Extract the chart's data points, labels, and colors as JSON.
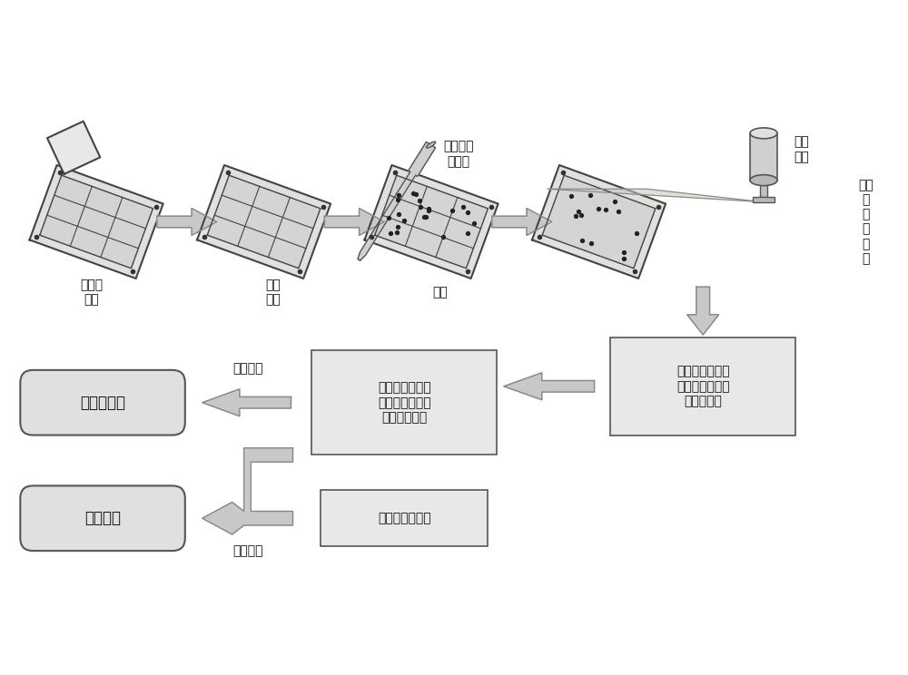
{
  "bg_color": "#ffffff",
  "box_color": "#e8e8e8",
  "box_edge": "#555555",
  "arrow_color": "#aaaaaa",
  "arrow_edge": "#888888",
  "text_color": "#111111",
  "font_size": 11,
  "labels": {
    "cover_glass": "盖上盖\n玻片",
    "add_algae": "加入\n藻液",
    "absorb_excess": "吸走多余\n的藻液",
    "stand": "静置",
    "raman_system": "拉曼\n系统",
    "laser_scan": "激光\n线\n扫\n描\n成\n像",
    "preprocess": "藻细胞拉曼成像\n预处理（滤波，\n基线校正）",
    "display": "藻细胞拉曼成像\n显示（拉曼峰强\n或拉曼频移）",
    "algae_db": "藻种拉曼数据库",
    "count": "藻细胞计数",
    "identify": "藻种识别",
    "stat_analysis": "统计分析",
    "discrim_analysis": "判别分析"
  }
}
